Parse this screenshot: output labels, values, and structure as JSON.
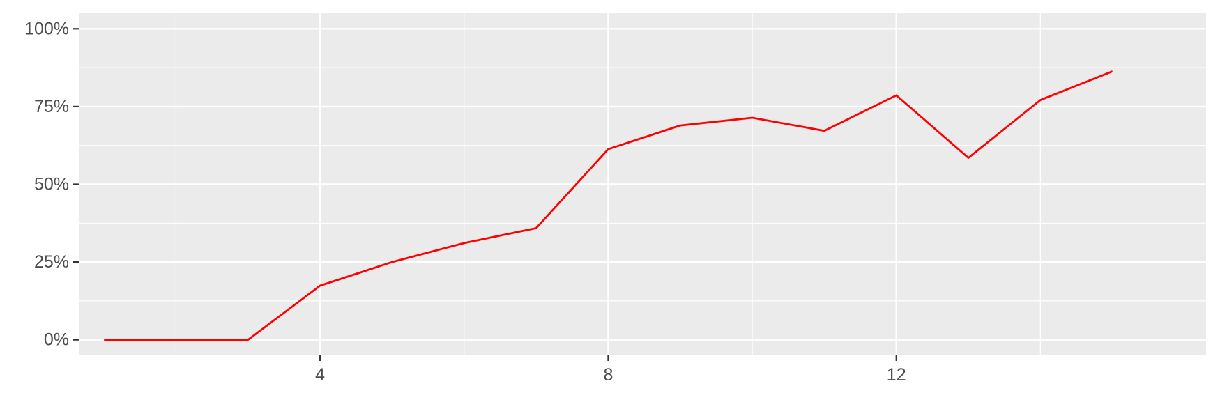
{
  "chart_data": {
    "type": "line",
    "title": "",
    "xlabel": "",
    "ylabel": "",
    "xlim": [
      0.65,
      16.3
    ],
    "ylim": [
      -0.05,
      1.05
    ],
    "x_ticks": [
      {
        "value": 4,
        "label": "4"
      },
      {
        "value": 8,
        "label": "8"
      },
      {
        "value": 12,
        "label": "12"
      }
    ],
    "x_minor_breaks": [
      2,
      6,
      10,
      14
    ],
    "y_ticks": [
      {
        "value": 0,
        "label": "0%"
      },
      {
        "value": 0.25,
        "label": "25%"
      },
      {
        "value": 0.5,
        "label": "50%"
      },
      {
        "value": 0.75,
        "label": "75%"
      },
      {
        "value": 1,
        "label": "100%"
      }
    ],
    "y_minor_breaks": [
      0.125,
      0.375,
      0.625,
      0.875
    ],
    "grid": true,
    "legend": "none",
    "colors": {
      "panel": "#ebebeb",
      "grid": "#ffffff",
      "axis_tick": "#333333",
      "series": "#ff0000"
    },
    "series": [
      {
        "x": [
          1,
          2,
          3,
          4,
          5,
          6,
          7,
          8,
          9,
          10,
          11,
          12,
          13,
          14,
          15
        ],
        "values": [
          0,
          0,
          0,
          0.174,
          0.25,
          0.311,
          0.359,
          0.613,
          0.689,
          0.714,
          0.672,
          0.786,
          0.585,
          0.771,
          0.863
        ]
      }
    ]
  }
}
